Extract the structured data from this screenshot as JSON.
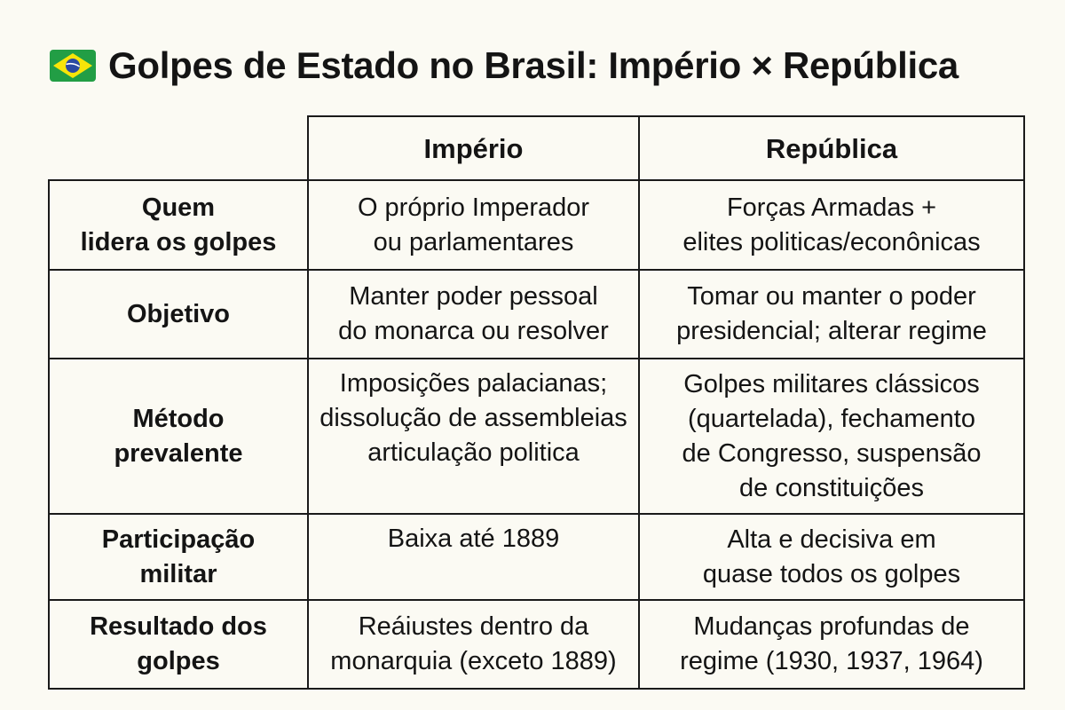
{
  "title": {
    "flag_icon": "brazil-flag-icon",
    "text": "Golpes de Estado no Brasil: Império × República"
  },
  "table": {
    "headers": [
      "",
      "Império",
      "República"
    ],
    "rows": [
      {
        "label": "Quem\nlidera os golpes",
        "imperio": "O próprio Imperador\nou parlamentares",
        "republica": "Forças Armadas +\nelites politicas/econônicas"
      },
      {
        "label": "Objetivo",
        "imperio": "Manter poder pessoal\ndo monarca ou resolver",
        "republica": "Tomar ou manter o poder\npresidencial; alterar regime"
      },
      {
        "label": "Método\nprevalente",
        "imperio": "Imposições palacianas;\ndissolução de assembleias\narticulação politica",
        "republica": "Golpes militares clássicos\n(quartelada), fechamento\nde Congresso, suspensão\nde constituições"
      },
      {
        "label": "Participação\nmilitar",
        "imperio": "Baixa até 1889",
        "republica": "Alta e decisiva em\nquase todos os golpes"
      },
      {
        "label": "Resultado dos\ngolpes",
        "imperio": "Reáiustes dentro da\nmonarquia (exceto 1889)",
        "republica": "Mudanças profundas de\nregime (1930, 1937, 1964)"
      }
    ]
  },
  "colors": {
    "background": "#fbfaf3",
    "flag_green": "#229e45",
    "flag_yellow": "#f8e509",
    "flag_blue": "#2b49a3"
  }
}
